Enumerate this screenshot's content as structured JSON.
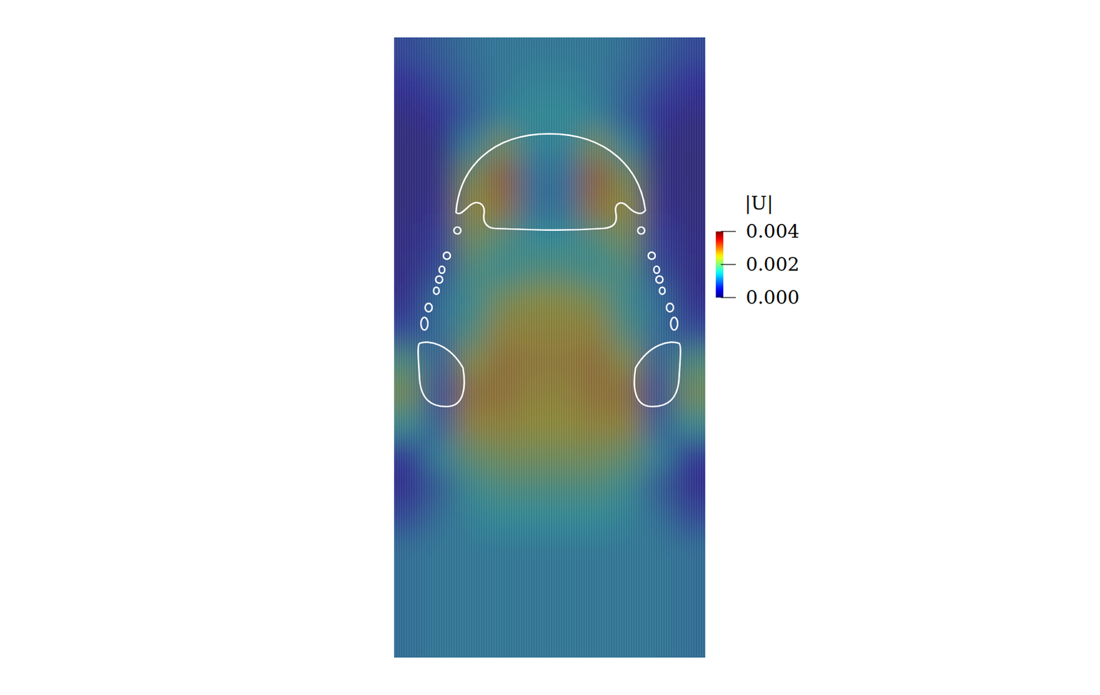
{
  "chart_data": {
    "type": "heatmap",
    "tick_labels": false,
    "cells": [
      [
        0.0008,
        0.001,
        0.0012,
        0.0013,
        0.0013,
        0.0013,
        0.0013,
        0.0012,
        0.001,
        0.0008
      ],
      [
        0.0005,
        0.0008,
        0.0011,
        0.0013,
        0.0014,
        0.0014,
        0.0013,
        0.0011,
        0.0008,
        0.0005
      ],
      [
        0.0003,
        0.0005,
        0.001,
        0.0014,
        0.0015,
        0.0015,
        0.0014,
        0.001,
        0.0005,
        0.0003
      ],
      [
        0.0002,
        0.0003,
        0.0014,
        0.0022,
        0.0014,
        0.0014,
        0.0022,
        0.0014,
        0.0003,
        0.0002
      ],
      [
        0.0002,
        0.0003,
        0.0022,
        0.003,
        0.0012,
        0.0012,
        0.003,
        0.0022,
        0.0003,
        0.0002
      ],
      [
        0.0002,
        0.0004,
        0.0025,
        0.0028,
        0.0012,
        0.0012,
        0.0028,
        0.0025,
        0.0004,
        0.0002
      ],
      [
        0.0003,
        0.0006,
        0.0022,
        0.0018,
        0.0015,
        0.0015,
        0.0018,
        0.0022,
        0.0006,
        0.0003
      ],
      [
        0.0003,
        0.0008,
        0.0018,
        0.0016,
        0.0018,
        0.0018,
        0.0016,
        0.0018,
        0.0008,
        0.0003
      ],
      [
        0.0004,
        0.0012,
        0.0016,
        0.0022,
        0.0024,
        0.0024,
        0.0022,
        0.0016,
        0.0012,
        0.0004
      ],
      [
        0.0008,
        0.0012,
        0.0018,
        0.0026,
        0.0026,
        0.0026,
        0.0026,
        0.0018,
        0.0012,
        0.0008
      ],
      [
        0.0018,
        0.001,
        0.0024,
        0.0028,
        0.0027,
        0.0027,
        0.0028,
        0.0024,
        0.001,
        0.0018
      ],
      [
        0.0022,
        0.0008,
        0.0028,
        0.0028,
        0.0026,
        0.0026,
        0.0028,
        0.0028,
        0.0008,
        0.0022
      ],
      [
        0.0016,
        0.001,
        0.0026,
        0.0026,
        0.0025,
        0.0025,
        0.0026,
        0.0026,
        0.001,
        0.0016
      ],
      [
        0.0006,
        0.0014,
        0.002,
        0.0022,
        0.0022,
        0.0022,
        0.0022,
        0.002,
        0.0014,
        0.0006
      ],
      [
        0.0004,
        0.001,
        0.0016,
        0.0018,
        0.0018,
        0.0018,
        0.0018,
        0.0016,
        0.001,
        0.0004
      ],
      [
        0.0008,
        0.0012,
        0.0014,
        0.0015,
        0.0015,
        0.0015,
        0.0015,
        0.0014,
        0.0012,
        0.0008
      ],
      [
        0.0012,
        0.0013,
        0.0013,
        0.0013,
        0.0013,
        0.0013,
        0.0013,
        0.0013,
        0.0013,
        0.0012
      ],
      [
        0.0012,
        0.0013,
        0.0013,
        0.0013,
        0.0013,
        0.0013,
        0.0013,
        0.0013,
        0.0013,
        0.0012
      ],
      [
        0.0012,
        0.0013,
        0.0013,
        0.0013,
        0.0013,
        0.0013,
        0.0013,
        0.0013,
        0.0013,
        0.0012
      ],
      [
        0.0012,
        0.0013,
        0.0013,
        0.0013,
        0.0013,
        0.0013,
        0.0013,
        0.0013,
        0.0013,
        0.0012
      ]
    ],
    "colorbar": {
      "label": "|U|",
      "range": [
        0,
        0.004
      ],
      "ticks": [
        {
          "value": 0,
          "label": "0.000"
        },
        0.002,
        0.004
      ]
    }
  }
}
